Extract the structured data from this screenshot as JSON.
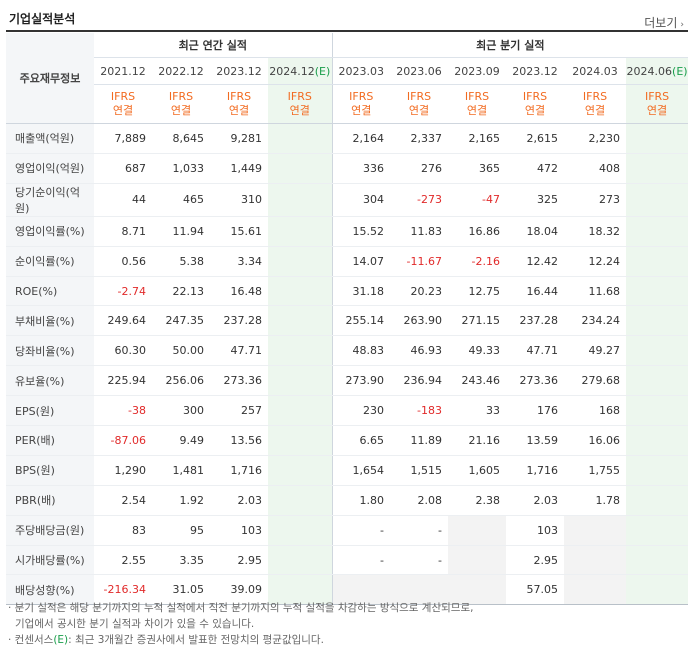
{
  "section_title": "기업실적분석",
  "more_label": "더보기",
  "label_header": "주요재무정보",
  "annual_group": "최근 연간 실적",
  "quarter_group": "최근 분기 실적",
  "periods": [
    "2021.12",
    "2022.12",
    "2023.12",
    "2024.12",
    "2023.03",
    "2023.06",
    "2023.09",
    "2023.12",
    "2024.03",
    "2024.06"
  ],
  "estimate_suffix": "(E)",
  "estimate_mark": "(E)",
  "ifrs_label": "IFRS",
  "consolidated_label": "연결",
  "rows": [
    {
      "label": "매출액(억원)",
      "values": [
        "7,889",
        "8,645",
        "9,281",
        "",
        "2,164",
        "2,337",
        "2,165",
        "2,615",
        "2,230",
        ""
      ]
    },
    {
      "label": "영업이익(억원)",
      "values": [
        "687",
        "1,033",
        "1,449",
        "",
        "336",
        "276",
        "365",
        "472",
        "408",
        ""
      ]
    },
    {
      "label": "당기순이익(억원)",
      "values": [
        "44",
        "465",
        "310",
        "",
        "304",
        "-273",
        "-47",
        "325",
        "273",
        ""
      ]
    },
    {
      "label": "영업이익률(%)",
      "values": [
        "8.71",
        "11.94",
        "15.61",
        "",
        "15.52",
        "11.83",
        "16.86",
        "18.04",
        "18.32",
        ""
      ]
    },
    {
      "label": "순이익률(%)",
      "values": [
        "0.56",
        "5.38",
        "3.34",
        "",
        "14.07",
        "-11.67",
        "-2.16",
        "12.42",
        "12.24",
        ""
      ]
    },
    {
      "label": "ROE(%)",
      "values": [
        "-2.74",
        "22.13",
        "16.48",
        "",
        "31.18",
        "20.23",
        "12.75",
        "16.44",
        "11.68",
        ""
      ]
    },
    {
      "label": "부채비율(%)",
      "values": [
        "249.64",
        "247.35",
        "237.28",
        "",
        "255.14",
        "263.90",
        "271.15",
        "237.28",
        "234.24",
        ""
      ]
    },
    {
      "label": "당좌비율(%)",
      "values": [
        "60.30",
        "50.00",
        "47.71",
        "",
        "48.83",
        "46.93",
        "49.33",
        "47.71",
        "49.27",
        ""
      ]
    },
    {
      "label": "유보율(%)",
      "values": [
        "225.94",
        "256.06",
        "273.36",
        "",
        "273.90",
        "236.94",
        "243.46",
        "273.36",
        "279.68",
        ""
      ]
    },
    {
      "label": "EPS(원)",
      "values": [
        "-38",
        "300",
        "257",
        "",
        "230",
        "-183",
        "33",
        "176",
        "168",
        ""
      ]
    },
    {
      "label": "PER(배)",
      "values": [
        "-87.06",
        "9.49",
        "13.56",
        "",
        "6.65",
        "11.89",
        "21.16",
        "13.59",
        "16.06",
        ""
      ]
    },
    {
      "label": "BPS(원)",
      "values": [
        "1,290",
        "1,481",
        "1,716",
        "",
        "1,654",
        "1,515",
        "1,605",
        "1,716",
        "1,755",
        ""
      ]
    },
    {
      "label": "PBR(배)",
      "values": [
        "2.54",
        "1.92",
        "2.03",
        "",
        "1.80",
        "2.08",
        "2.38",
        "2.03",
        "1.78",
        ""
      ]
    },
    {
      "label": "주당배당금(원)",
      "values": [
        "83",
        "95",
        "103",
        "",
        "-",
        "-",
        "",
        "103",
        "",
        ""
      ]
    },
    {
      "label": "시가배당률(%)",
      "values": [
        "2.55",
        "3.35",
        "2.95",
        "",
        "-",
        "-",
        "",
        "2.95",
        "",
        ""
      ]
    },
    {
      "label": "배당성향(%)",
      "values": [
        "-216.34",
        "31.05",
        "39.09",
        "",
        "",
        "",
        "",
        "57.05",
        "",
        ""
      ]
    }
  ],
  "notes": {
    "line1": "· 분기 실적은 해당 분기까지의 누적 실적에서 직전 분기까지의 누적 실적을 차감하는 방식으로 계산되므로,",
    "line2": "기업에서 공시한 분기 실적과 차이가 있을 수 있습니다.",
    "line3_prefix": "· 컨센서스",
    "line3_rest": ": 최근 3개월간 증권사에서 발표한 전망치의 평균값입니다."
  }
}
